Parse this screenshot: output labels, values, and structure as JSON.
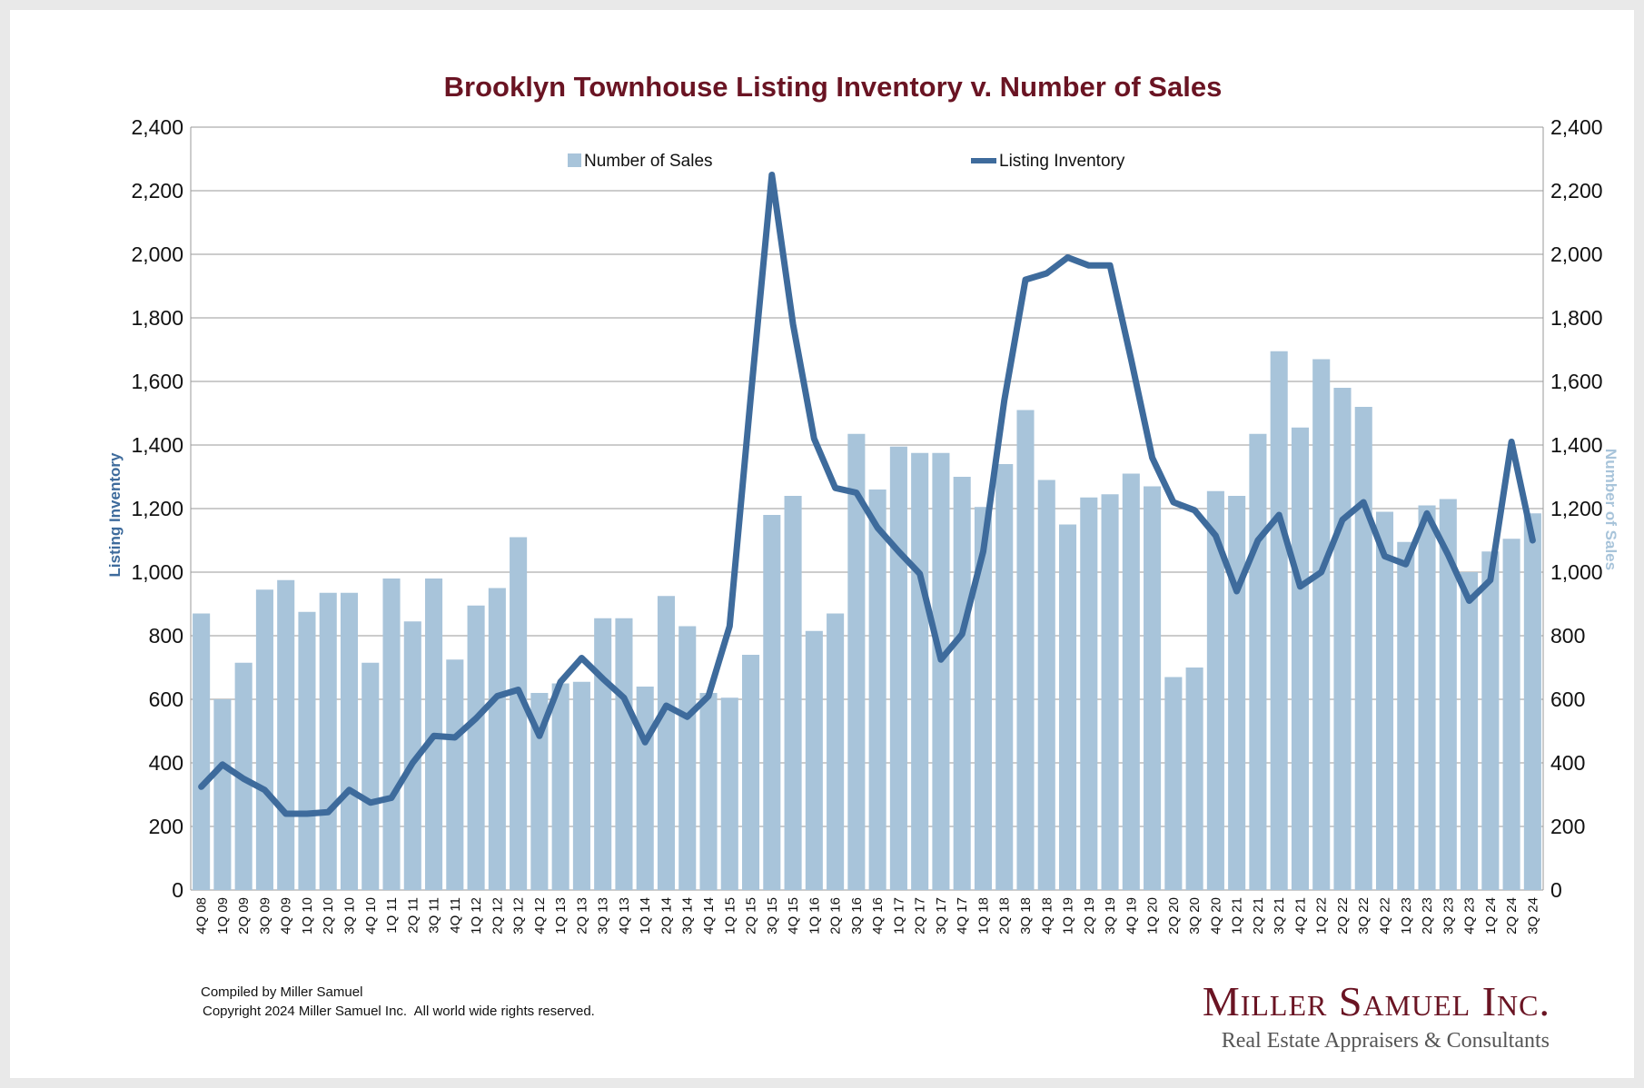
{
  "colors": {
    "bar": "#a8c4da",
    "line": "#3e6b9c",
    "title": "#6a1423",
    "grid": "#9a9a9a",
    "left_axis_label": "#3e6b9c",
    "right_axis_label": "#a8c4da",
    "logo": "#6a1423"
  },
  "chart_data": {
    "type": "bar+line",
    "title": "Brooklyn Townhouse Listing Inventory v. Number of Sales",
    "ylabel_left": "Listing Inventory",
    "ylabel_right": "Number of Sales",
    "ylim": [
      0,
      2400
    ],
    "yticks": [
      "0",
      "200",
      "400",
      "600",
      "800",
      "1,000",
      "1,200",
      "1,400",
      "1,600",
      "1,800",
      "2,000",
      "2,200",
      "2,400"
    ],
    "legend": {
      "bars": "Number of Sales",
      "line": "Listing Inventory",
      "position": "top"
    },
    "categories": [
      "4Q 08",
      "1Q 09",
      "2Q 09",
      "3Q 09",
      "4Q 09",
      "1Q 10",
      "2Q 10",
      "3Q 10",
      "4Q 10",
      "1Q 11",
      "2Q 11",
      "3Q 11",
      "4Q 11",
      "1Q 12",
      "2Q 12",
      "3Q 12",
      "4Q 12",
      "1Q 13",
      "2Q 13",
      "3Q 13",
      "4Q 13",
      "1Q 14",
      "2Q 14",
      "3Q 14",
      "4Q 14",
      "1Q 15",
      "2Q 15",
      "3Q 15",
      "4Q 15",
      "1Q 16",
      "2Q 16",
      "3Q 16",
      "4Q 16",
      "1Q 17",
      "2Q 17",
      "3Q 17",
      "4Q 17",
      "1Q 18",
      "2Q 18",
      "3Q 18",
      "4Q 18",
      "1Q 19",
      "2Q 19",
      "3Q 19",
      "4Q 19",
      "1Q 20",
      "2Q 20",
      "3Q 20",
      "4Q 20",
      "1Q 21",
      "2Q 21",
      "3Q 21",
      "4Q 21",
      "1Q 22",
      "2Q 22",
      "3Q 22",
      "4Q 22",
      "1Q 23",
      "2Q 23",
      "3Q 23",
      "4Q 23",
      "1Q 24",
      "2Q 24",
      "3Q 24"
    ],
    "series": [
      {
        "name": "Number of Sales",
        "kind": "bar",
        "axis": "right",
        "values": [
          870,
          600,
          715,
          945,
          975,
          875,
          935,
          935,
          715,
          980,
          845,
          980,
          725,
          895,
          950,
          1110,
          620,
          650,
          655,
          855,
          855,
          640,
          925,
          830,
          620,
          605,
          740,
          1180,
          1240,
          815,
          870,
          1435,
          1260,
          1395,
          1375,
          1375,
          1300,
          1205,
          1340,
          1510,
          1290,
          1150,
          1235,
          1245,
          1310,
          1270,
          670,
          700,
          1255,
          1240,
          1435,
          1695,
          1455,
          1670,
          1580,
          1520,
          1190,
          1095,
          1210,
          1230,
          1000,
          1065,
          1105,
          1185
        ]
      },
      {
        "name": "Listing Inventory",
        "kind": "line",
        "axis": "left",
        "values": [
          325,
          395,
          350,
          315,
          240,
          240,
          245,
          315,
          275,
          290,
          400,
          485,
          480,
          540,
          610,
          630,
          485,
          655,
          730,
          665,
          605,
          465,
          580,
          545,
          610,
          830,
          1550,
          2250,
          1780,
          1420,
          1265,
          1250,
          1140,
          1065,
          995,
          725,
          805,
          1065,
          1540,
          1920,
          1940,
          1990,
          1965,
          1965,
          1670,
          1360,
          1220,
          1195,
          1115,
          940,
          1100,
          1180,
          955,
          1000,
          1165,
          1220,
          1050,
          1025,
          1185,
          1055,
          910,
          975,
          1410,
          1100
        ]
      }
    ]
  },
  "footer": {
    "line1": "Compiled by Miller Samuel",
    "line2": "Copyright 2024 Miller Samuel Inc.  All world wide rights reserved."
  },
  "logo": {
    "name": "Miller Samuel Inc.",
    "tagline": "Real Estate Appraisers & Consultants"
  }
}
